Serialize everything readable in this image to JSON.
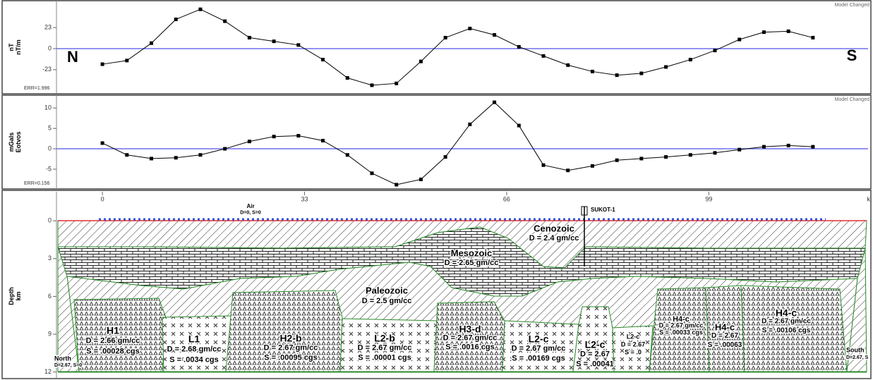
{
  "chart_data": [
    {
      "type": "line",
      "markers": true,
      "ylabel": [
        "nT",
        "nT/m"
      ],
      "error_label": "ERR=1.996",
      "status": "Model Changed",
      "left_label": "N",
      "right_label": "S",
      "xlim": [
        -7.5,
        125
      ],
      "ylim": [
        -47,
        47
      ],
      "yticks": [
        23,
        0,
        -23
      ],
      "color": "#000000",
      "baseline_color": "#6e6ef0",
      "x": [
        0,
        4,
        8,
        12,
        16,
        20,
        24,
        28,
        32,
        36,
        40,
        44,
        48,
        52,
        56,
        60,
        64,
        68,
        72,
        76,
        80,
        84,
        88,
        92,
        96,
        100,
        104,
        108,
        112,
        116
      ],
      "values": [
        -17,
        -13,
        6,
        32,
        43,
        30,
        12,
        8,
        4,
        -12,
        -32,
        -40,
        -38,
        -14,
        12,
        22,
        15,
        2,
        -8,
        -18,
        -25,
        -29,
        -27,
        -20,
        -12,
        -2,
        10,
        18,
        19,
        12
      ]
    },
    {
      "type": "line",
      "markers": true,
      "ylabel": [
        "mGals",
        "Eotvos"
      ],
      "error_label": "ERR=0.156",
      "status": "Model Changed",
      "xlim": [
        -7.5,
        125
      ],
      "ylim": [
        -9.5,
        12.8
      ],
      "yticks": [
        10,
        5,
        0,
        -5
      ],
      "color": "#000000",
      "baseline_color": "#6e6ef0",
      "x": [
        0,
        4,
        8,
        12,
        16,
        20,
        24,
        28,
        32,
        36,
        40,
        44,
        48,
        52,
        56,
        60,
        64,
        68,
        72,
        76,
        80,
        84,
        88,
        92,
        96,
        100,
        104,
        108,
        112,
        116
      ],
      "values": [
        1.4,
        -1.5,
        -2.4,
        -2.2,
        -1.5,
        0,
        1.8,
        3.0,
        3.2,
        2.0,
        -1.5,
        -6,
        -8.8,
        -7.5,
        -2,
        6,
        11.4,
        5.7,
        -4,
        -5.3,
        -4.2,
        -2.8,
        -2.4,
        -2.0,
        -1.5,
        -1.0,
        -0.2,
        0.5,
        0.8,
        0.5
      ]
    }
  ],
  "cross_section": {
    "ylabel": [
      "Depth",
      "km"
    ],
    "xlim": [
      -7.5,
      125
    ],
    "xticks": [
      0,
      33,
      66,
      99
    ],
    "xunit": "k",
    "ylim": [
      -1.3,
      12.3
    ],
    "yticks": [
      0,
      3,
      6,
      9,
      12
    ],
    "well": "SUKOT-1",
    "units": [
      {
        "name": "Air",
        "lines": [
          "D=0, S=0"
        ]
      },
      {
        "name": "Cenozoic",
        "lines": [
          "D = 2.4 gm/cc"
        ]
      },
      {
        "name": "Mesozoic",
        "lines": [
          "D = 2.65 gm/cc"
        ]
      },
      {
        "name": "Paleozoic",
        "lines": [
          "D = 2.5 gm/cc"
        ]
      },
      {
        "name": "H1",
        "lines": [
          "D = 2.66 gm/cc",
          "S = .00028 cgs"
        ]
      },
      {
        "name": "L1",
        "lines": [
          "D = 2.68 gm/cc",
          "S = .0034 cgs"
        ]
      },
      {
        "name": "H2-b",
        "lines": [
          "D = 2.67 gm/cc",
          "S = .00095 cgs"
        ]
      },
      {
        "name": "L2-b",
        "lines": [
          "D = 2.67 gm/cc",
          "S = .00001 cgs"
        ]
      },
      {
        "name": "H3-d",
        "lines": [
          "D = 2.67 gm/cc",
          "S = .0016 cgs"
        ]
      },
      {
        "name": "L2-c",
        "lines": [
          "D = 2.67 gm/cc",
          "S = .00169 cgs"
        ]
      },
      {
        "name": "L2-c",
        "lines": [
          "D = 2.67",
          "S = .00041"
        ]
      },
      {
        "name": "L2-c",
        "lines": [
          "D = 2.67",
          "S = .0"
        ]
      },
      {
        "name": "H4-c",
        "lines": [
          "D = 2.67 gm/cc",
          "S = .00033 cgs"
        ]
      },
      {
        "name": "H4-c",
        "lines": [
          "D = 2.67",
          "S = .00063"
        ]
      },
      {
        "name": "H4-c",
        "lines": [
          "D = 2.67 gm/cc",
          "S = .00106 cgs"
        ]
      },
      {
        "name": "North",
        "lines": [
          "D=2.67, S=0"
        ]
      },
      {
        "name": "South",
        "lines": [
          "D=2.67, S"
        ]
      }
    ]
  }
}
